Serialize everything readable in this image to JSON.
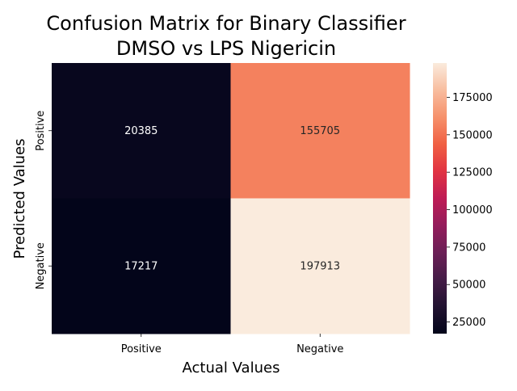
{
  "chart_data": {
    "type": "heatmap",
    "title_lines": [
      "Confusion Matrix for Binary Classifier",
      "DMSO vs LPS Nigericin"
    ],
    "xlabel": "Actual Values",
    "ylabel": "Predicted Values",
    "x_categories": [
      "Positive",
      "Negative"
    ],
    "y_categories": [
      "Positive",
      "Negative"
    ],
    "values": [
      [
        20385,
        155705
      ],
      [
        17217,
        197913
      ]
    ],
    "colormap": "rocket",
    "colorbar": {
      "vmin": 17217,
      "vmax": 197913,
      "ticks": [
        25000,
        50000,
        75000,
        100000,
        125000,
        150000,
        175000
      ]
    }
  }
}
